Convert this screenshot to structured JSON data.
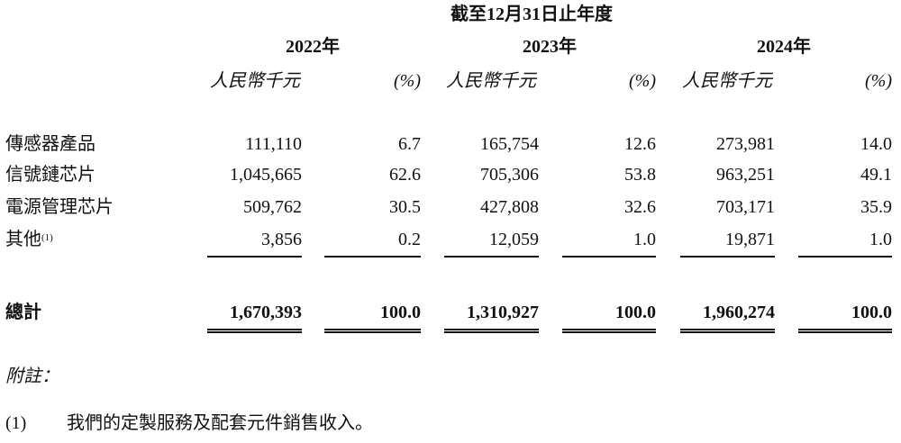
{
  "period_header": "截至12月31日止年度",
  "years": [
    "2022年",
    "2023年",
    "2024年"
  ],
  "unit_label": "人民幣千元",
  "pct_label": "(%)",
  "rows": [
    {
      "label": "傳感器產品",
      "note": "",
      "values": [
        "111,110",
        "6.7",
        "165,754",
        "12.6",
        "273,981",
        "14.0"
      ]
    },
    {
      "label": "信號鏈芯片",
      "note": "",
      "values": [
        "1,045,665",
        "62.6",
        "705,306",
        "53.8",
        "963,251",
        "49.1"
      ]
    },
    {
      "label": "電源管理芯片",
      "note": "",
      "values": [
        "509,762",
        "30.5",
        "427,808",
        "32.6",
        "703,171",
        "35.9"
      ]
    },
    {
      "label": "其他",
      "note": "(1)",
      "values": [
        "3,856",
        "0.2",
        "12,059",
        "1.0",
        "19,871",
        "1.0"
      ]
    }
  ],
  "total": {
    "label": "總計",
    "values": [
      "1,670,393",
      "100.0",
      "1,310,927",
      "100.0",
      "1,960,274",
      "100.0"
    ]
  },
  "notes_title": "附註：",
  "footnotes": [
    {
      "marker": "(1)",
      "text": "我們的定製服務及配套元件銷售收入。"
    }
  ]
}
